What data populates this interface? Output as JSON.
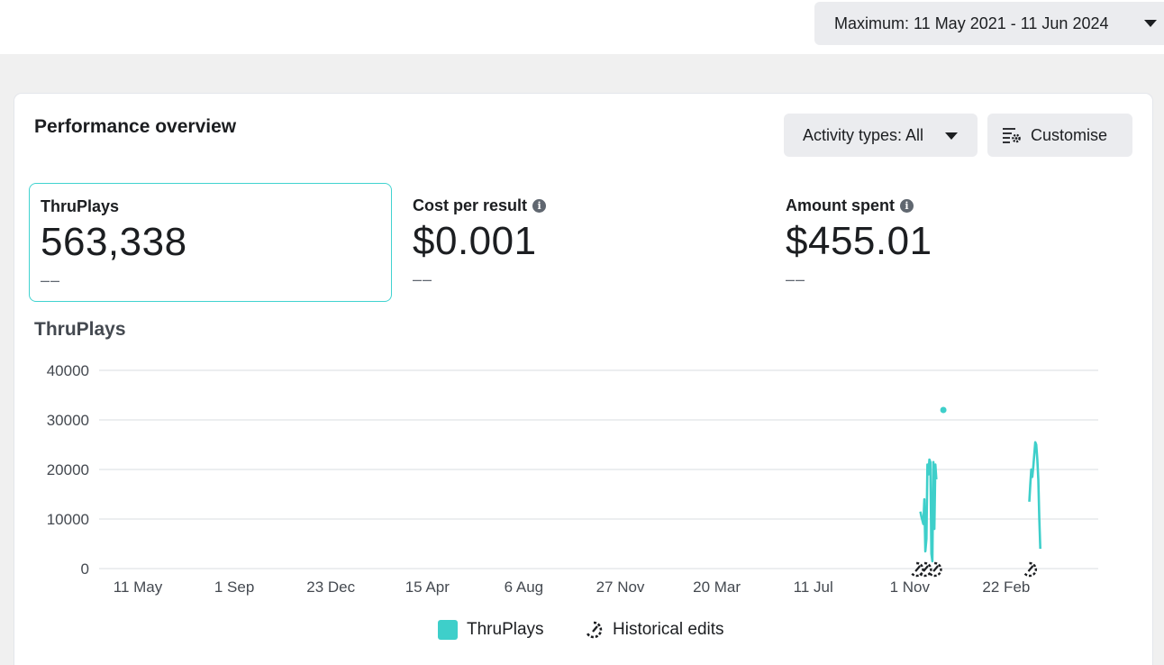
{
  "header": {
    "date_range": "Maximum: 11 May 2021 - 11 Jun 2024"
  },
  "card": {
    "title": "Performance overview",
    "activity_filter": "Activity types: All",
    "customise_label": "Customise"
  },
  "metrics": [
    {
      "label": "ThruPlays",
      "value": "563,338",
      "delta": "––",
      "selected": true,
      "info": false
    },
    {
      "label": "Cost per result",
      "value": "$0.001",
      "delta": "––",
      "selected": false,
      "info": true
    },
    {
      "label": "Amount spent",
      "value": "$455.01",
      "delta": "––",
      "selected": false,
      "info": true
    }
  ],
  "colors": {
    "series": "#3ecfca",
    "grid": "#dadde1",
    "text": "#1c1e21"
  },
  "chart_data": {
    "type": "line",
    "title": "ThruPlays",
    "ylim": [
      0,
      40000
    ],
    "y_ticks": [
      "40000",
      "30000",
      "20000",
      "10000",
      "0"
    ],
    "x_tick_labels": [
      "11 May",
      "1 Sep",
      "23 Dec",
      "15 Apr",
      "6 Aug",
      "27 Nov",
      "20 Mar",
      "11 Jul",
      "1 Nov",
      "22 Feb"
    ],
    "grid": true,
    "legend": [
      "ThruPlays",
      "Historical edits"
    ],
    "series": [
      {
        "name": "ThruPlays",
        "segments": [
          [
            {
              "x": 822,
              "y": 11500
            },
            {
              "x": 823,
              "y": 10500
            },
            {
              "x": 825,
              "y": 9000
            },
            {
              "x": 826,
              "y": 14000
            },
            {
              "x": 827,
              "y": 3500
            },
            {
              "x": 828,
              "y": 6000
            },
            {
              "x": 829,
              "y": 21000
            },
            {
              "x": 830,
              "y": 19000
            },
            {
              "x": 831,
              "y": 22000
            },
            {
              "x": 832,
              "y": 21500
            },
            {
              "x": 833,
              "y": 3000
            },
            {
              "x": 834,
              "y": 1500
            },
            {
              "x": 835,
              "y": 21500
            },
            {
              "x": 836,
              "y": 8000
            },
            {
              "x": 837,
              "y": 21000
            },
            {
              "x": 838,
              "y": 18000
            }
          ],
          [
            {
              "x": 845,
              "y": 32000
            }
          ],
          [
            {
              "x": 931,
              "y": 13500
            },
            {
              "x": 932,
              "y": 17000
            },
            {
              "x": 933,
              "y": 20000
            },
            {
              "x": 934,
              "y": 18500
            },
            {
              "x": 935,
              "y": 20500
            },
            {
              "x": 936,
              "y": 23000
            },
            {
              "x": 937,
              "y": 25500
            },
            {
              "x": 938,
              "y": 25000
            },
            {
              "x": 939,
              "y": 22000
            },
            {
              "x": 940,
              "y": 18000
            },
            {
              "x": 941,
              "y": 10000
            },
            {
              "x": 942,
              "y": 4000
            }
          ]
        ]
      }
    ],
    "x_domain": [
      0,
      1000
    ],
    "historical_edits_x": [
      818,
      826,
      836,
      931
    ]
  }
}
